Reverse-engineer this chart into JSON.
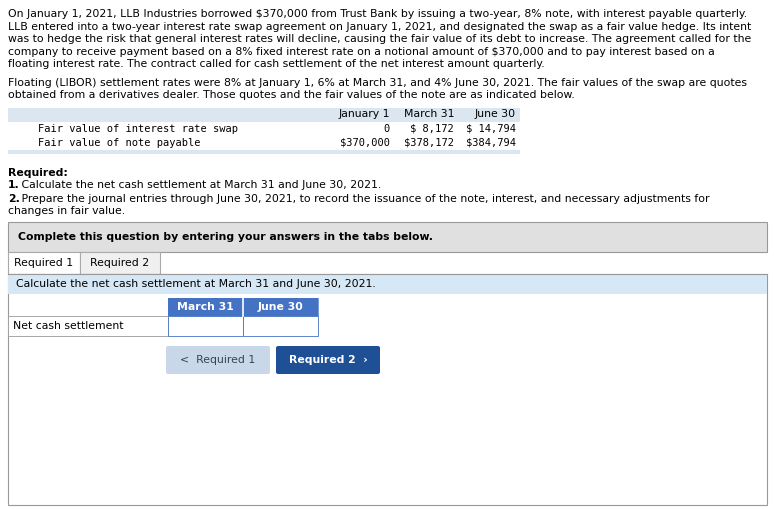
{
  "para1_lines": [
    "On January 1, 2021, LLB Industries borrowed $370,000 from Trust Bank by issuing a two-year, 8% note, with interest payable quarterly.",
    "LLB entered into a two-year interest rate swap agreement on January 1, 2021, and designated the swap as a fair value hedge. Its intent",
    "was to hedge the risk that general interest rates will decline, causing the fair value of its debt to increase. The agreement called for the",
    "company to receive payment based on a 8% fixed interest rate on a notional amount of $370,000 and to pay interest based on a",
    "floating interest rate. The contract called for cash settlement of the net interest amount quarterly."
  ],
  "para2_lines": [
    "Floating (LIBOR) settlement rates were 8% at January 1, 6% at March 31, and 4% June 30, 2021. The fair values of the swap are quotes",
    "obtained from a derivatives dealer. Those quotes and the fair values of the note are as indicated below."
  ],
  "table_header": [
    "January 1",
    "March 31",
    "June 30"
  ],
  "table_row1_label": "Fair value of interest rate swap",
  "table_row2_label": "Fair value of note payable",
  "table_row1_values": [
    "0",
    "$ 8,172",
    "$ 14,794"
  ],
  "table_row2_values": [
    "$370,000",
    "$378,172",
    "$384,794"
  ],
  "required_label": "Required:",
  "req1_num": "1.",
  "req1_rest": " Calculate the net cash settlement at March 31 and June 30, 2021.",
  "req2_num": "2.",
  "req2_rest": " Prepare the journal entries through June 30, 2021, to record the issuance of the note, interest, and necessary adjustments for",
  "req2_line2": "changes in fair value.",
  "complete_text": "Complete this question by entering your answers in the tabs below.",
  "tab1_label": "Required 1",
  "tab2_label": "Required 2",
  "instruction_text": "Calculate the net cash settlement at March 31 and June 30, 2021.",
  "col_headers": [
    "March 31",
    "June 30"
  ],
  "row_label": "Net cash settlement",
  "nav_left": "<  Required 1",
  "nav_right": "Required 2  ›",
  "bg_color": "#ffffff",
  "table_bg": "#e8eef5",
  "table_header_bg": "#dce6f1",
  "complete_box_bg": "#e0e0e0",
  "tab_active_bg": "#ffffff",
  "tab_inactive_bg": "#f0f0f0",
  "instruction_bg": "#d6e8f5",
  "col_header_bg": "#4472c4",
  "col_header_fg": "#ffffff",
  "nav_left_bg": "#c8d8e8",
  "nav_right_bg": "#1f5096",
  "nav_fg": "#ffffff",
  "border_color": "#999999",
  "tab_border": "#aaaaaa",
  "mono_font": "monospace",
  "sans_font": "DejaVu Sans"
}
